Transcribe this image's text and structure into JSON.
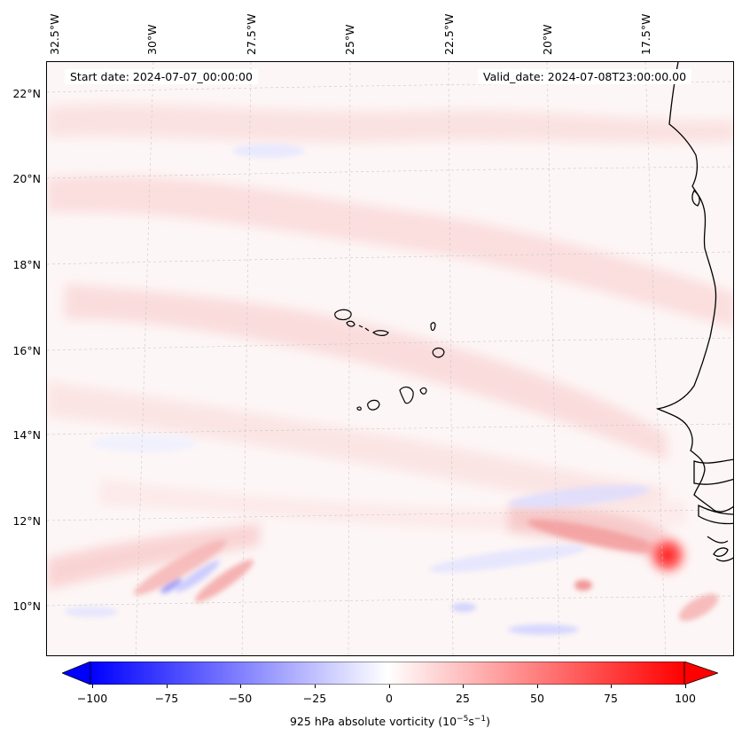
{
  "header": {
    "start_date": "Start date: 2024-07-07_00:00:00",
    "valid_date": "Valid_date: 2024-07-08T23:00:00.00"
  },
  "axes": {
    "longitude_labels": [
      "32.5°W",
      "30°W",
      "27.5°W",
      "25°W",
      "22.5°W",
      "20°W",
      "17.5°W"
    ],
    "latitude_labels": [
      "22°N",
      "20°N",
      "18°N",
      "16°N",
      "14°N",
      "12°N",
      "10°N"
    ]
  },
  "colorbar": {
    "ticks": [
      "−100",
      "−75",
      "−50",
      "−25",
      "0",
      "25",
      "50",
      "75",
      "100"
    ],
    "label": "925 hPa absolute vorticity (10",
    "label_exp1": "−5",
    "label_mid": "s",
    "label_exp2": "−1",
    "label_end": ")",
    "colors": {
      "min": "#0000ff",
      "mid": "#ffffff",
      "max": "#ff0000"
    }
  },
  "map": {
    "extent_lon": [
      -33,
      -15.5
    ],
    "extent_lat": [
      8.9,
      22.8
    ],
    "features": [
      "coastline-west-africa",
      "cape-verde-islands"
    ],
    "colors": {
      "background": "#fdf6f6",
      "coastline": "#000000",
      "gridline": "#c8c8c8"
    }
  }
}
